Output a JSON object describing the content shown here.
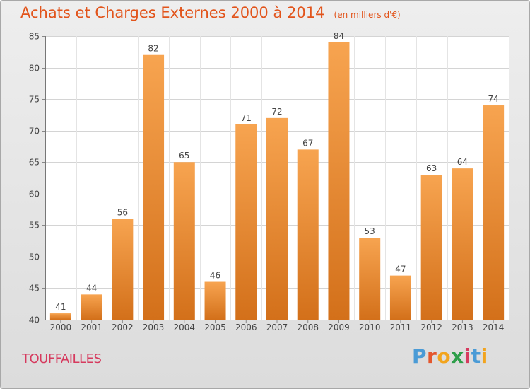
{
  "chart_data": {
    "type": "bar",
    "title": "Achats et Charges Externes 2000 à 2014",
    "subtitle": "(en milliers d'€)",
    "categories": [
      "2000",
      "2001",
      "2002",
      "2003",
      "2004",
      "2005",
      "2006",
      "2007",
      "2008",
      "2009",
      "2010",
      "2011",
      "2012",
      "2013",
      "2014"
    ],
    "values": [
      41,
      44,
      56,
      82,
      65,
      46,
      71,
      72,
      67,
      84,
      53,
      47,
      63,
      64,
      74
    ],
    "ylim": [
      40,
      85
    ],
    "yticks": [
      40,
      45,
      50,
      55,
      60,
      65,
      70,
      75,
      80,
      85
    ],
    "grid": true,
    "xlabel": "",
    "ylabel": "",
    "bar_color_top": "#f7a450",
    "bar_color_bottom": "#d3701a"
  },
  "commune": "TOUFFAILLES",
  "brand": {
    "text": "Proxiti",
    "letter_colors": [
      "#4a9bd6",
      "#e4572e",
      "#f2a41d",
      "#2e9e4a",
      "#d63a5e",
      "#4a9bd6",
      "#f2a41d"
    ]
  }
}
